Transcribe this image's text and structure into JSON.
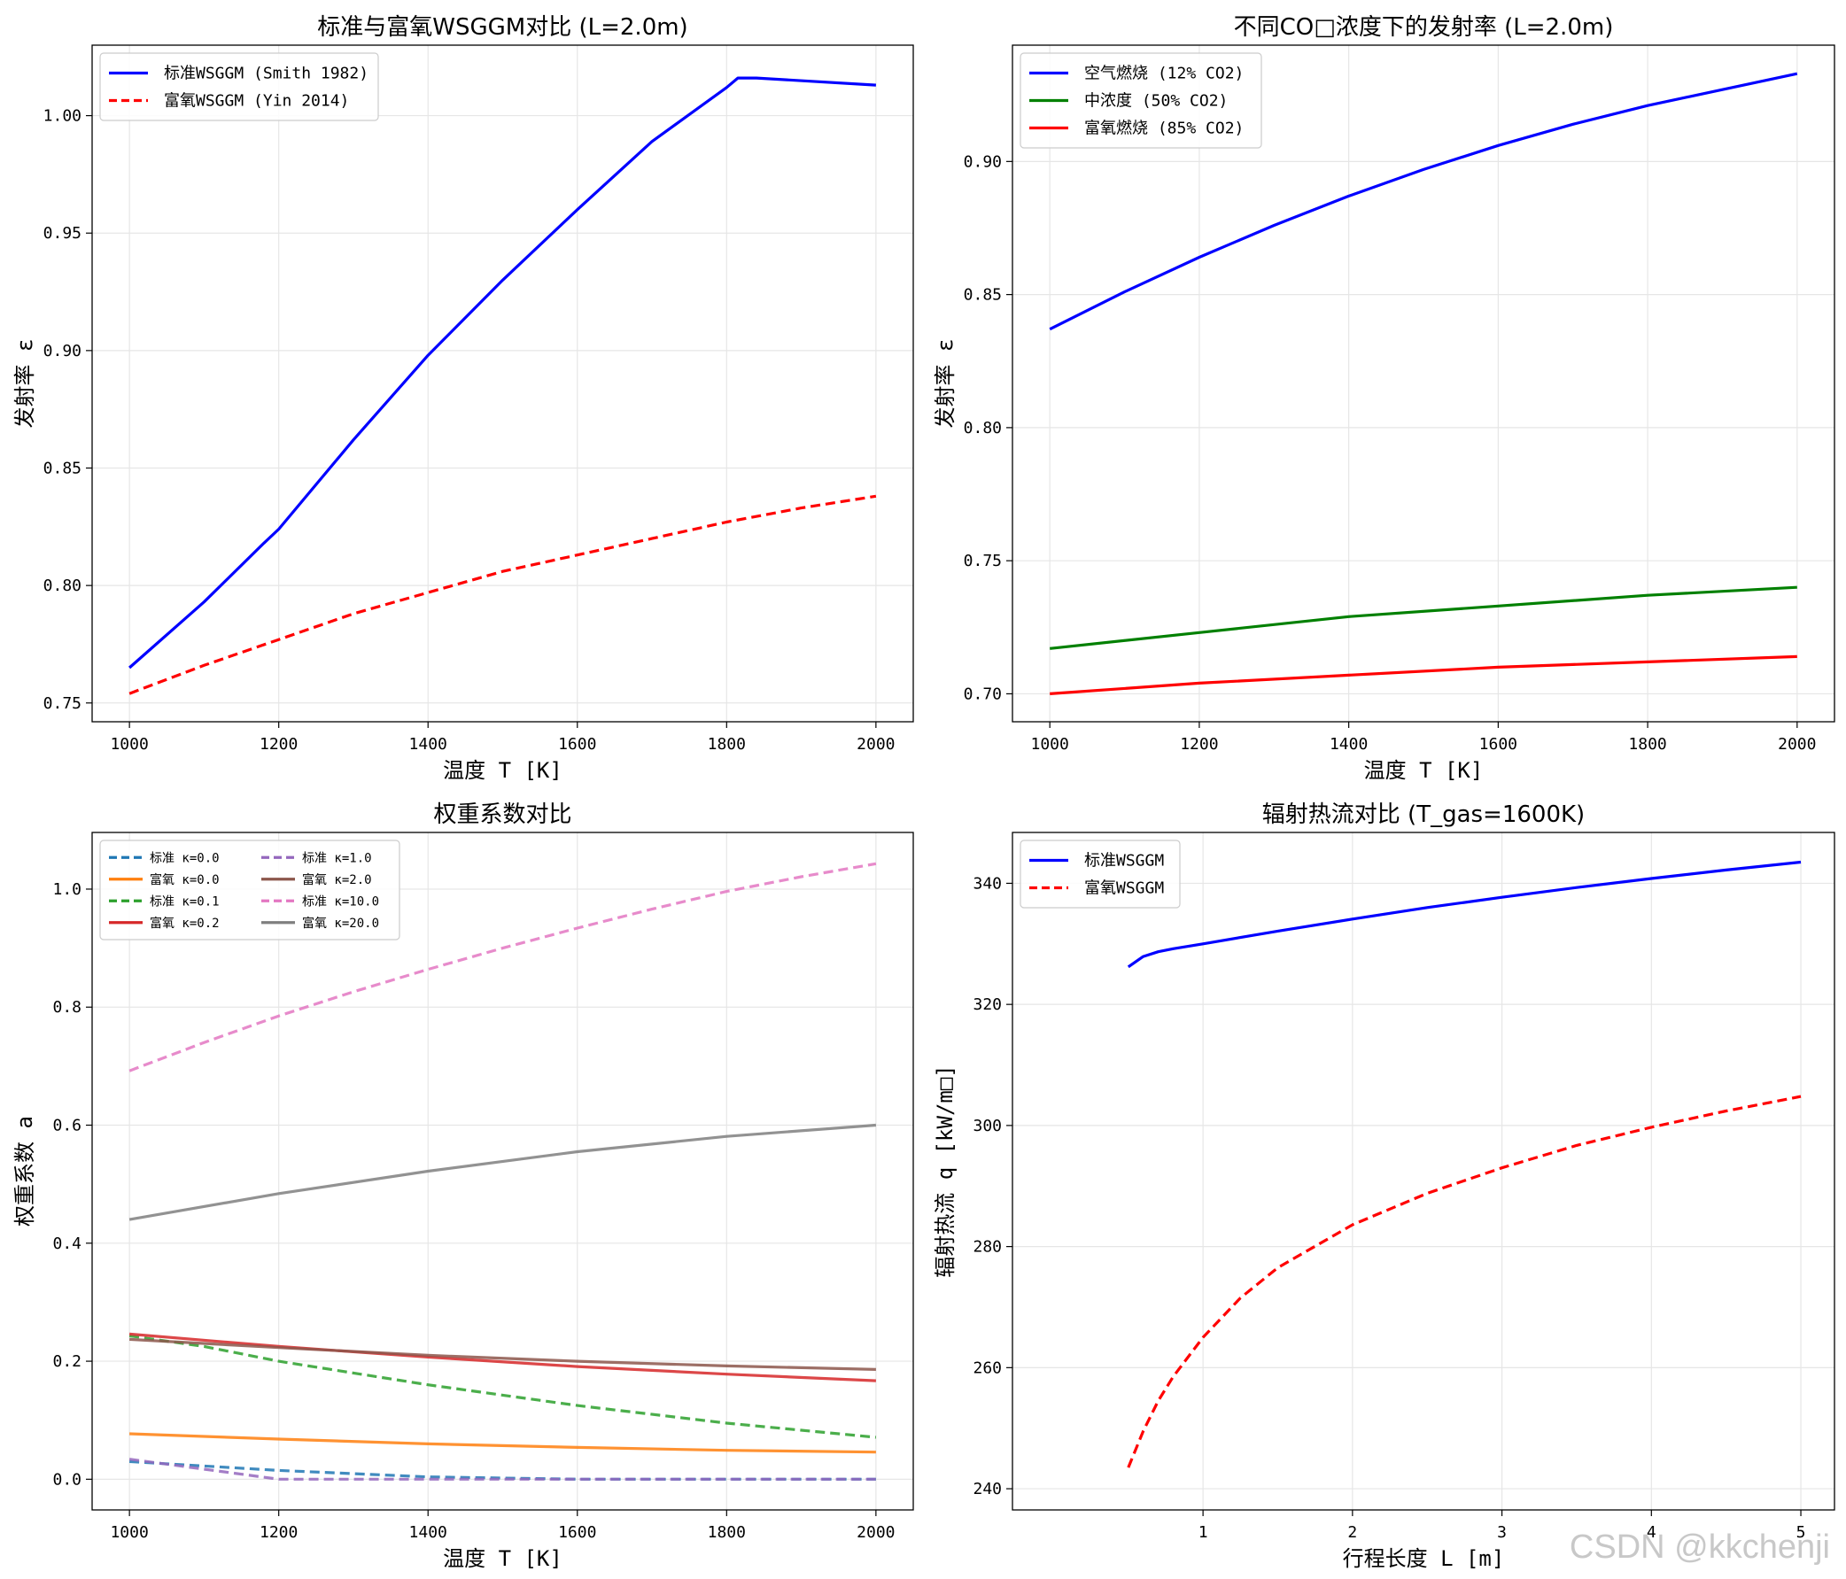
{
  "watermark": "CSDN @kkchenji",
  "chart_data": [
    {
      "type": "line",
      "title": "标准与富氧WSGGM对比 (L=2.0m)",
      "xlabel": "温度 T [K]",
      "ylabel": "发射率 ε",
      "xlim": [
        950,
        2050
      ],
      "ylim": [
        0.742,
        1.03
      ],
      "xticks": [
        1000,
        1200,
        1400,
        1600,
        1800,
        2000
      ],
      "yticks": [
        0.75,
        0.8,
        0.85,
        0.9,
        0.95,
        1.0
      ],
      "ytick_labels": [
        "0.75",
        "0.80",
        "0.85",
        "0.90",
        "0.95",
        "1.00"
      ],
      "grid": true,
      "legend": "top-left",
      "series": [
        {
          "name": "标准WSGGM (Smith 1982)",
          "color": "#0000ff",
          "style": "solid",
          "x": [
            1000,
            1100,
            1180,
            1200,
            1300,
            1400,
            1500,
            1600,
            1700,
            1800,
            1815,
            1840,
            2000
          ],
          "y": [
            0.765,
            0.793,
            0.818,
            0.824,
            0.862,
            0.898,
            0.93,
            0.96,
            0.989,
            1.012,
            1.016,
            1.016,
            1.013
          ]
        },
        {
          "name": "富氧WSGGM (Yin 2014)",
          "color": "#ff0000",
          "style": "dashed",
          "x": [
            1000,
            1100,
            1200,
            1300,
            1400,
            1500,
            1600,
            1700,
            1800,
            1900,
            2000
          ],
          "y": [
            0.754,
            0.766,
            0.777,
            0.788,
            0.797,
            0.806,
            0.813,
            0.82,
            0.827,
            0.833,
            0.838
          ]
        }
      ]
    },
    {
      "type": "line",
      "title": "不同CO□浓度下的发射率 (L=2.0m)",
      "xlabel": "温度 T [K]",
      "ylabel": "发射率 ε",
      "xlim": [
        950,
        2050
      ],
      "ylim": [
        0.6895,
        0.9437
      ],
      "xticks": [
        1000,
        1200,
        1400,
        1600,
        1800,
        2000
      ],
      "yticks": [
        0.7,
        0.75,
        0.8,
        0.85,
        0.9
      ],
      "ytick_labels": [
        "0.70",
        "0.75",
        "0.80",
        "0.85",
        "0.90"
      ],
      "grid": true,
      "legend": "top-left",
      "series": [
        {
          "name": "空气燃烧 (12% CO2)",
          "color": "#0000ff",
          "style": "solid",
          "x": [
            1000,
            1100,
            1200,
            1300,
            1400,
            1500,
            1600,
            1700,
            1800,
            1900,
            2000
          ],
          "y": [
            0.837,
            0.851,
            0.864,
            0.876,
            0.887,
            0.897,
            0.906,
            0.914,
            0.921,
            0.927,
            0.933
          ]
        },
        {
          "name": "中浓度 (50% CO2)",
          "color": "#008000",
          "style": "solid",
          "x": [
            1000,
            1200,
            1400,
            1600,
            1800,
            2000
          ],
          "y": [
            0.717,
            0.723,
            0.729,
            0.733,
            0.737,
            0.74
          ]
        },
        {
          "name": "富氧燃烧 (85% CO2)",
          "color": "#ff0000",
          "style": "solid",
          "x": [
            1000,
            1200,
            1400,
            1600,
            1800,
            2000
          ],
          "y": [
            0.7,
            0.704,
            0.707,
            0.71,
            0.712,
            0.714
          ]
        }
      ]
    },
    {
      "type": "line",
      "title": "权重系数对比",
      "xlabel": "温度 T [K]",
      "ylabel": "权重系数 a",
      "xlim": [
        950,
        2050
      ],
      "ylim": [
        -0.052,
        1.096
      ],
      "xticks": [
        1000,
        1200,
        1400,
        1600,
        1800,
        2000
      ],
      "yticks": [
        0.0,
        0.2,
        0.4,
        0.6,
        0.8,
        1.0
      ],
      "ytick_labels": [
        "0.0",
        "0.2",
        "0.4",
        "0.6",
        "0.8",
        "1.0"
      ],
      "grid": true,
      "legend": "top-left",
      "legend_columns": 2,
      "series": [
        {
          "name": "标准 κ=0.0",
          "color": "#1f77b4",
          "style": "dashed",
          "x": [
            1000,
            1200,
            1400,
            1600,
            1800,
            2000
          ],
          "y": [
            0.03,
            0.015,
            0.004,
            0.0,
            0.0,
            0.0
          ]
        },
        {
          "name": "富氧 κ=0.0",
          "color": "#ff7f0e",
          "style": "solid",
          "x": [
            1000,
            1200,
            1400,
            1600,
            1800,
            2000
          ],
          "y": [
            0.077,
            0.068,
            0.06,
            0.054,
            0.049,
            0.046
          ]
        },
        {
          "name": "标准 κ=0.1",
          "color": "#2ca02c",
          "style": "dashed",
          "x": [
            1000,
            1100,
            1200,
            1400,
            1600,
            1800,
            2000
          ],
          "y": [
            0.243,
            0.225,
            0.2,
            0.16,
            0.125,
            0.095,
            0.071
          ]
        },
        {
          "name": "富氧 κ=0.2",
          "color": "#d62728",
          "style": "solid",
          "x": [
            1000,
            1200,
            1400,
            1600,
            1800,
            2000
          ],
          "y": [
            0.246,
            0.225,
            0.207,
            0.191,
            0.178,
            0.167
          ]
        },
        {
          "name": "标准 κ=1.0",
          "color": "#9467bd",
          "style": "dashed",
          "x": [
            1000,
            1200,
            1400,
            1600,
            1800,
            2000
          ],
          "y": [
            0.034,
            0.0,
            0.0,
            0.0,
            0.0,
            0.0
          ]
        },
        {
          "name": "富氧 κ=2.0",
          "color": "#8c564b",
          "style": "solid",
          "x": [
            1000,
            1200,
            1400,
            1600,
            1800,
            2000
          ],
          "y": [
            0.237,
            0.223,
            0.21,
            0.2,
            0.192,
            0.186
          ]
        },
        {
          "name": "标准 κ=10.0",
          "color": "#e377c2",
          "style": "dashed",
          "x": [
            1000,
            1100,
            1200,
            1300,
            1400,
            1500,
            1600,
            1700,
            1800,
            1900,
            2000
          ],
          "y": [
            0.692,
            0.74,
            0.785,
            0.826,
            0.864,
            0.9,
            0.934,
            0.966,
            0.996,
            1.021,
            1.043
          ]
        },
        {
          "name": "富氧 κ=20.0",
          "color": "#7f7f7f",
          "style": "solid",
          "x": [
            1000,
            1200,
            1400,
            1600,
            1800,
            2000
          ],
          "y": [
            0.44,
            0.484,
            0.522,
            0.555,
            0.581,
            0.6
          ]
        }
      ]
    },
    {
      "type": "line",
      "title": "辐射热流对比 (T_gas=1600K)",
      "xlabel": "行程长度 L [m]",
      "ylabel": "辐射热流 q [kW/m□]",
      "xlim": [
        -0.275,
        5.225
      ],
      "ylim": [
        236.5,
        348.4
      ],
      "xticks": [
        1,
        2,
        3,
        4,
        5
      ],
      "xtick_labels": [
        "1",
        "2",
        "3",
        "4",
        "5"
      ],
      "yticks": [
        240,
        260,
        280,
        300,
        320,
        340
      ],
      "ytick_labels": [
        "240",
        "260",
        "280",
        "300",
        "320",
        "340"
      ],
      "grid": true,
      "legend": "top-left",
      "series": [
        {
          "name": "标准WSGGM",
          "color": "#0000ff",
          "style": "solid",
          "x": [
            0.5,
            0.6,
            0.7,
            0.8,
            1.0,
            1.5,
            2.0,
            2.5,
            3.0,
            3.5,
            4.0,
            4.5,
            5.0
          ],
          "y": [
            326.2,
            327.9,
            328.7,
            329.2,
            330.0,
            332.1,
            334.1,
            336.0,
            337.7,
            339.3,
            340.8,
            342.2,
            343.5
          ]
        },
        {
          "name": "富氧WSGGM",
          "color": "#ff0000",
          "style": "dashed",
          "x": [
            0.5,
            0.6,
            0.7,
            0.8,
            1.0,
            1.25,
            1.5,
            2.0,
            2.5,
            3.0,
            3.5,
            4.0,
            4.5,
            5.0
          ],
          "y": [
            243.5,
            249.5,
            254.5,
            258.5,
            265.0,
            271.5,
            276.5,
            283.6,
            288.8,
            293.0,
            296.7,
            299.7,
            302.4,
            304.8
          ]
        }
      ]
    }
  ]
}
